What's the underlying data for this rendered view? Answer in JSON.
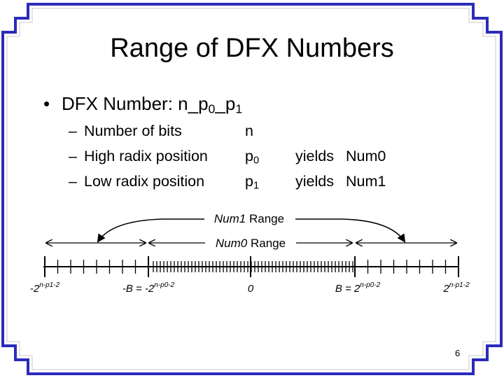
{
  "title": "Range of DFX Numbers",
  "bullet": {
    "label": "DFX Number: ",
    "format": {
      "n": "n",
      "sep1": "_p",
      "sub0": "0",
      "sep2": "_p",
      "sub1": "1"
    }
  },
  "rows": [
    {
      "dash": "–",
      "label": "Number of bits",
      "symbol": "n",
      "symbol_sub": "",
      "yields": "",
      "result": ""
    },
    {
      "dash": "–",
      "label": "High radix position",
      "symbol": "p",
      "symbol_sub": "0",
      "yields": "yields",
      "result": "Num0"
    },
    {
      "dash": "–",
      "label": "Low radix position",
      "symbol": "p",
      "symbol_sub": "1",
      "yields": "yields",
      "result": "Num1"
    }
  ],
  "diagram": {
    "num1_range": {
      "italic": "Num1",
      "text": " Range"
    },
    "num0_range": {
      "italic": "Num0",
      "text": " Range"
    },
    "axis_labels": {
      "neg_max": {
        "base": "-2",
        "exp": "n-p1-2"
      },
      "neg_b": {
        "base": "-B = -2",
        "exp": "n-p0-2"
      },
      "zero": "0",
      "pos_b": {
        "base": "B = 2",
        "exp": "n-p0-2"
      },
      "pos_max": {
        "base": "2",
        "exp": "n-p1-2"
      }
    }
  },
  "page_number": "6",
  "colors": {
    "frame": "#2b2bb8",
    "frame_light": "#b8b8b8"
  }
}
